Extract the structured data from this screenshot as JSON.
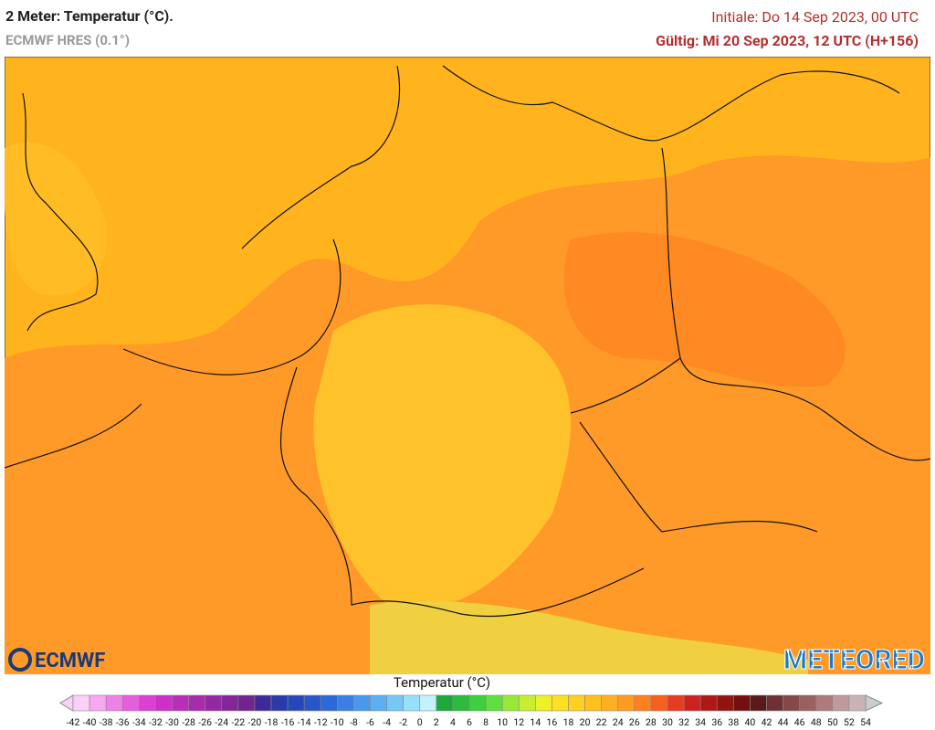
{
  "header": {
    "title": "2 Meter: Temperatur (°C).",
    "subtitle": "ECMWF HRES (0.1°)",
    "init": "Initiale: Do 14 Sep 2023, 00 UTC",
    "valid": "Gültig: Mi 20 Sep 2023, 12 UTC (H+156)"
  },
  "logos": {
    "left": "ECMWF",
    "right": "METEORED"
  },
  "legend": {
    "title": "Temperatur (°C)",
    "ticks": [
      -42,
      -40,
      -38,
      -36,
      -34,
      -32,
      -30,
      -28,
      -26,
      -24,
      -22,
      -20,
      -18,
      -16,
      -14,
      -12,
      -10,
      -8,
      -6,
      -4,
      -2,
      0,
      2,
      4,
      6,
      8,
      10,
      12,
      14,
      16,
      18,
      20,
      22,
      24,
      26,
      28,
      30,
      32,
      34,
      36,
      38,
      40,
      42,
      44,
      46,
      48,
      50,
      52,
      54
    ],
    "colors": [
      "#fbd0f8",
      "#f6a8f1",
      "#ef80e8",
      "#e65ede",
      "#dc40d3",
      "#cc30c6",
      "#bb2cb9",
      "#a82aad",
      "#9528a2",
      "#822698",
      "#70248e",
      "#3a2a9a",
      "#2a3aa8",
      "#2548b8",
      "#2858c8",
      "#2c68d8",
      "#3a80e4",
      "#4a98ec",
      "#5cb0f2",
      "#74c8f6",
      "#98e0fa",
      "#c4f2fc",
      "#1ea83c",
      "#2cbc3c",
      "#3cd03c",
      "#60e040",
      "#98e838",
      "#c8ee30",
      "#eef028",
      "#ffe020",
      "#ffd020",
      "#ffc020",
      "#ffb020",
      "#ff9a20",
      "#ff8020",
      "#f86020",
      "#e83c20",
      "#d02020",
      "#b01818",
      "#901410",
      "#701010",
      "#5a1a1a",
      "#6e3030",
      "#844848",
      "#9a6060",
      "#b07a7a",
      "#c09a9a",
      "#c8b4b4"
    ]
  }
}
